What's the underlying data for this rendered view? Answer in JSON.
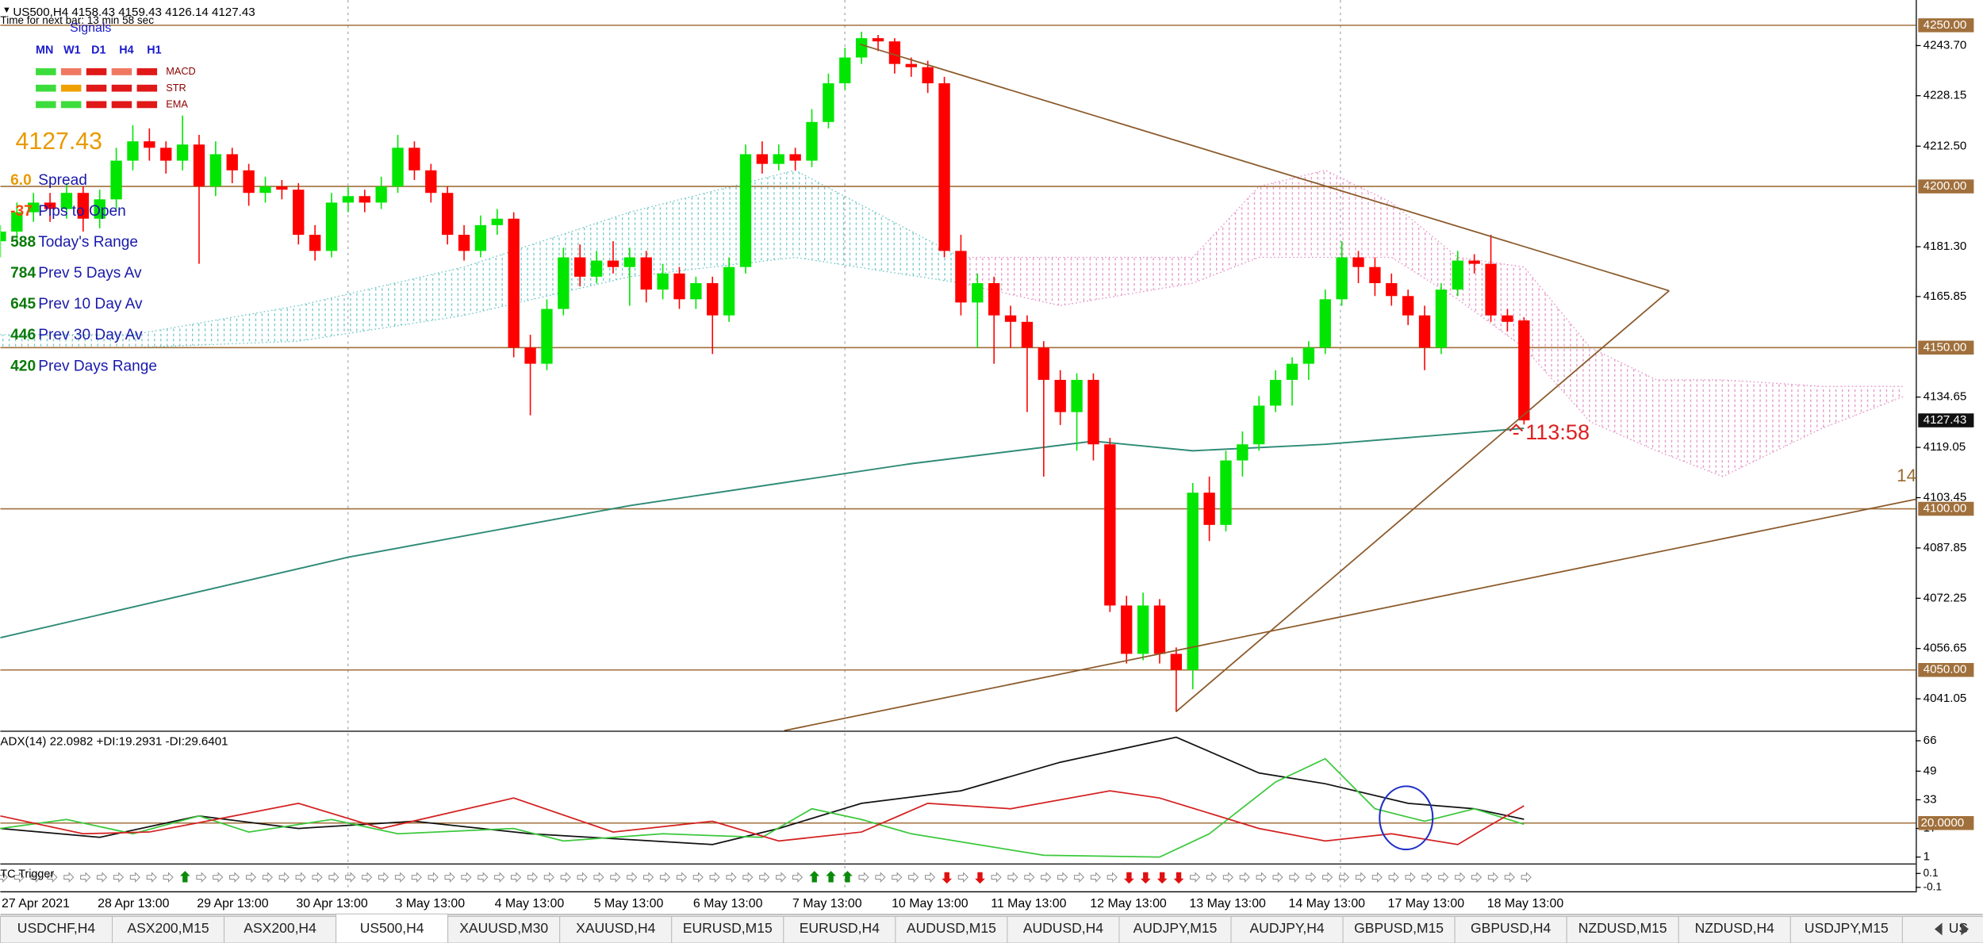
{
  "header": {
    "symbol_line": "US500,H4 4158.43 4159.43 4126.14 4127.43",
    "timer": "Time for next bar: 13 min 58 sec"
  },
  "signals": {
    "title": "Signals",
    "timeframes": [
      "MN",
      "W1",
      "D1",
      "H4",
      "H1"
    ],
    "rows": [
      {
        "name": "MACD",
        "colors": [
          "#3cdc3c",
          "#f07860",
          "#e01818",
          "#f07860",
          "#e01818"
        ]
      },
      {
        "name": "STR",
        "colors": [
          "#3cdc3c",
          "#f0a000",
          "#e01818",
          "#e01818",
          "#e01818"
        ]
      },
      {
        "name": "EMA",
        "colors": [
          "#3cdc3c",
          "#3cdc3c",
          "#e01818",
          "#e01818",
          "#e01818"
        ]
      }
    ]
  },
  "info": {
    "price": "4127.43",
    "rows": [
      {
        "value": "6.0",
        "label": "Spread",
        "color": "#e89a00"
      },
      {
        "value": "-37",
        "label": "Pips to Open",
        "color": "#ff4500"
      },
      {
        "value": "588",
        "label": "Today's Range",
        "color": "#0a7a0a"
      },
      {
        "value": "784",
        "label": "Prev 5 Days Av",
        "color": "#0a7a0a"
      },
      {
        "value": "645",
        "label": "Prev 10 Day Av",
        "color": "#0a7a0a"
      },
      {
        "value": "446",
        "label": "Prev 30 Day Av",
        "color": "#0a7a0a"
      },
      {
        "value": "420",
        "label": "Prev Days Range",
        "color": "#0a7a0a"
      }
    ]
  },
  "chart": {
    "type": "candlestick",
    "ylim": [
      4031.18,
      4257.84
    ],
    "yticks": [
      {
        "value": 4243.7,
        "label": "4243.70"
      },
      {
        "value": 4228.15,
        "label": "4228.15"
      },
      {
        "value": 4212.5,
        "label": "4212.50"
      },
      {
        "value": 4181.3,
        "label": "4181.30"
      },
      {
        "value": 4165.85,
        "label": "4165.85"
      },
      {
        "value": 4134.65,
        "label": "4134.65"
      },
      {
        "value": 4119.05,
        "label": "4119.05"
      },
      {
        "value": 4103.45,
        "label": "4103.45"
      },
      {
        "value": 4087.85,
        "label": "4087.85"
      },
      {
        "value": 4072.25,
        "label": "4072.25"
      },
      {
        "value": 4056.65,
        "label": "4056.65"
      },
      {
        "value": 4041.05,
        "label": "4041.05"
      }
    ],
    "levels": [
      {
        "value": 4250,
        "label": "4250.00"
      },
      {
        "value": 4200,
        "label": "4200.00"
      },
      {
        "value": 4150,
        "label": "4150.00"
      },
      {
        "value": 4100,
        "label": "4100.00"
      },
      {
        "value": 4050,
        "label": "4050.00"
      }
    ],
    "current": {
      "value": 4127.43,
      "label": "4127.43"
    },
    "up_color": "#00e600",
    "down_color": "#ff0000",
    "candles": [
      [
        4183,
        4188,
        4178,
        4186
      ],
      [
        4186,
        4195,
        4183,
        4192
      ],
      [
        4192,
        4198,
        4189,
        4195
      ],
      [
        4195,
        4198,
        4189,
        4193
      ],
      [
        4193,
        4201,
        4190,
        4198
      ],
      [
        4198,
        4200,
        4186,
        4190
      ],
      [
        4190,
        4199,
        4187,
        4196
      ],
      [
        4196,
        4212,
        4193,
        4208
      ],
      [
        4208,
        4219,
        4205,
        4214
      ],
      [
        4214,
        4218,
        4208,
        4212
      ],
      [
        4212,
        4214,
        4204,
        4208
      ],
      [
        4208,
        4222,
        4205,
        4213
      ],
      [
        4213,
        4216,
        4176,
        4200
      ],
      [
        4200,
        4214,
        4197,
        4210
      ],
      [
        4210,
        4212,
        4201,
        4205
      ],
      [
        4205,
        4207,
        4194,
        4198
      ],
      [
        4198,
        4203,
        4195,
        4200
      ],
      [
        4200,
        4202,
        4196,
        4199
      ],
      [
        4199,
        4201,
        4182,
        4185
      ],
      [
        4185,
        4188,
        4177,
        4180
      ],
      [
        4180,
        4198,
        4178,
        4195
      ],
      [
        4195,
        4200,
        4192,
        4197
      ],
      [
        4197,
        4199,
        4192,
        4195
      ],
      [
        4195,
        4203,
        4193,
        4200
      ],
      [
        4200,
        4216,
        4198,
        4212
      ],
      [
        4212,
        4214,
        4202,
        4205
      ],
      [
        4205,
        4207,
        4195,
        4198
      ],
      [
        4198,
        4200,
        4182,
        4185
      ],
      [
        4185,
        4188,
        4177,
        4180
      ],
      [
        4180,
        4191,
        4178,
        4188
      ],
      [
        4188,
        4193,
        4185,
        4190
      ],
      [
        4190,
        4192,
        4147,
        4150
      ],
      [
        4150,
        4154,
        4129,
        4145
      ],
      [
        4145,
        4165,
        4143,
        4162
      ],
      [
        4162,
        4181,
        4160,
        4178
      ],
      [
        4178,
        4182,
        4169,
        4172
      ],
      [
        4172,
        4180,
        4170,
        4177
      ],
      [
        4177,
        4183,
        4173,
        4175
      ],
      [
        4175,
        4181,
        4163,
        4178
      ],
      [
        4178,
        4180,
        4164,
        4168
      ],
      [
        4168,
        4176,
        4165,
        4173
      ],
      [
        4173,
        4175,
        4162,
        4165
      ],
      [
        4165,
        4172,
        4162,
        4170
      ],
      [
        4170,
        4172,
        4148,
        4160
      ],
      [
        4160,
        4178,
        4158,
        4175
      ],
      [
        4175,
        4213,
        4173,
        4210
      ],
      [
        4210,
        4214,
        4204,
        4207
      ],
      [
        4207,
        4213,
        4205,
        4210
      ],
      [
        4210,
        4212,
        4205,
        4208
      ],
      [
        4208,
        4224,
        4206,
        4220
      ],
      [
        4220,
        4235,
        4218,
        4232
      ],
      [
        4232,
        4243,
        4230,
        4240
      ],
      [
        4240,
        4248,
        4238,
        4246
      ],
      [
        4246,
        4247,
        4242,
        4245
      ],
      [
        4245,
        4246,
        4235,
        4238
      ],
      [
        4238,
        4240,
        4234,
        4237
      ],
      [
        4237,
        4239,
        4229,
        4232
      ],
      [
        4232,
        4234,
        4178,
        4180
      ],
      [
        4180,
        4185,
        4160,
        4164
      ],
      [
        4164,
        4173,
        4150,
        4170
      ],
      [
        4170,
        4172,
        4145,
        4160
      ],
      [
        4160,
        4163,
        4150,
        4158
      ],
      [
        4158,
        4160,
        4130,
        4150
      ],
      [
        4150,
        4152,
        4110,
        4140
      ],
      [
        4140,
        4143,
        4126,
        4130
      ],
      [
        4130,
        4142,
        4118,
        4140
      ],
      [
        4140,
        4142,
        4115,
        4120
      ],
      [
        4120,
        4122,
        4068,
        4070
      ],
      [
        4070,
        4073,
        4052,
        4055
      ],
      [
        4055,
        4074,
        4053,
        4070
      ],
      [
        4070,
        4072,
        4052,
        4055
      ],
      [
        4055,
        4057,
        4037,
        4050
      ],
      [
        4050,
        4108,
        4044,
        4105
      ],
      [
        4105,
        4110,
        4090,
        4095
      ],
      [
        4095,
        4118,
        4093,
        4115
      ],
      [
        4115,
        4124,
        4110,
        4120
      ],
      [
        4120,
        4135,
        4118,
        4132
      ],
      [
        4132,
        4143,
        4130,
        4140
      ],
      [
        4140,
        4147,
        4132,
        4145
      ],
      [
        4145,
        4152,
        4140,
        4150
      ],
      [
        4150,
        4168,
        4148,
        4165
      ],
      [
        4165,
        4183,
        4163,
        4178
      ],
      [
        4178,
        4180,
        4170,
        4175
      ],
      [
        4175,
        4178,
        4166,
        4170
      ],
      [
        4170,
        4173,
        4163,
        4166
      ],
      [
        4166,
        4168,
        4157,
        4160
      ],
      [
        4160,
        4163,
        4143,
        4150
      ],
      [
        4150,
        4170,
        4148,
        4168
      ],
      [
        4168,
        4180,
        4166,
        4177
      ],
      [
        4177,
        4179,
        4173,
        4176
      ],
      [
        4176,
        4185,
        4158,
        4160
      ],
      [
        4160,
        4162,
        4155,
        4158
      ],
      [
        4158.43,
        4159.43,
        4126.14,
        4127.43
      ]
    ],
    "ma": {
      "color": "#2e8b77",
      "index": [
        0,
        21,
        38,
        55,
        66,
        72,
        80,
        92
      ],
      "values": [
        4060,
        4085,
        4101,
        4114,
        4121,
        4118,
        4120,
        4125
      ]
    },
    "cloud": [
      {
        "color": "#6cc4c4",
        "index": [
          0,
          8,
          18,
          28,
          38,
          48,
          58
        ],
        "upper": [
          4154,
          4154,
          4163,
          4175,
          4192,
          4205,
          4178
        ],
        "lower": [
          4150,
          4150,
          4152,
          4160,
          4172,
          4178,
          4170
        ]
      },
      {
        "color": "#e38fc4",
        "index": [
          58,
          64,
          72,
          76,
          80,
          84,
          88,
          92,
          96,
          100,
          104,
          110,
          115
        ],
        "upper": [
          4178,
          4178,
          4178,
          4200,
          4205,
          4195,
          4178,
          4175,
          4150,
          4140,
          4140,
          4138,
          4138
        ],
        "lower": [
          4170,
          4163,
          4170,
          4178,
          4178,
          4178,
          4165,
          4150,
          4127,
          4118,
          4110,
          4125,
          4135
        ]
      }
    ],
    "countdown": "- 113:58",
    "trend_label": "14",
    "x_labels": [
      "27 Apr 2021",
      "28 Apr 13:00",
      "29 Apr 13:00",
      "30 Apr 13:00",
      "3 May 13:00",
      "4 May 13:00",
      "5 May 13:00",
      "6 May 13:00",
      "7 May 13:00",
      "10 May 13:00",
      "11 May 13:00",
      "12 May 13:00",
      "13 May 13:00",
      "14 May 13:00",
      "17 May 13:00",
      "18 May 13:00"
    ]
  },
  "adx": {
    "title": "ADX(14) 22.0982 +DI:19.2931 -DI:29.6401",
    "ylim": [
      -2.53,
      70.95
    ],
    "yticks": [
      66,
      49,
      33,
      17,
      1
    ],
    "level": {
      "value": 20,
      "label": "20.0000"
    },
    "series": [
      {
        "color": "#111111",
        "index": [
          0,
          6,
          12,
          18,
          25,
          32,
          43,
          47,
          52,
          58,
          64,
          71,
          76,
          80,
          85,
          89,
          92
        ],
        "values": [
          17,
          12,
          24,
          17,
          21,
          14,
          8,
          17,
          31,
          38,
          54,
          68,
          48,
          42,
          31,
          28,
          22.0982
        ]
      },
      {
        "color": "#3cc83c",
        "index": [
          0,
          4,
          8,
          12,
          15,
          20,
          24,
          31,
          34,
          40,
          46,
          49,
          52,
          55,
          63,
          70,
          73,
          77,
          80,
          83,
          86,
          89,
          92
        ],
        "values": [
          17,
          22,
          14,
          24,
          15,
          22,
          14,
          17,
          10,
          14,
          12,
          28,
          22,
          14,
          2,
          1,
          14,
          43,
          56,
          28,
          21,
          28,
          19.2931
        ]
      },
      {
        "color": "#d42020",
        "index": [
          0,
          5,
          9,
          13,
          18,
          23,
          31,
          37,
          43,
          47,
          52,
          56,
          61,
          67,
          70,
          76,
          80,
          84,
          88,
          90,
          92
        ],
        "values": [
          24,
          14,
          15,
          22,
          31,
          17,
          34,
          15,
          21,
          10,
          15,
          31,
          28,
          38,
          34,
          17,
          10,
          14,
          8,
          19,
          29.6401
        ]
      }
    ]
  },
  "tc_trigger": {
    "title": "TC Trigger",
    "ylim": [
      -0.173,
      0.227
    ],
    "yticks": [
      0.1,
      -0.1
    ],
    "up": [
      11,
      49,
      50,
      51
    ],
    "down": [
      57,
      59,
      68,
      69,
      70,
      71
    ]
  },
  "tabs": [
    "USDCHF,H4",
    "ASX200,M15",
    "ASX200,H4",
    "US500,H4",
    "XAUUSD,M30",
    "XAUUSD,H4",
    "EURUSD,M15",
    "EURUSD,H4",
    "AUDUSD,M15",
    "AUDUSD,H4",
    "AUDJPY,M15",
    "AUDJPY,H4",
    "GBPUSD,M15",
    "GBPUSD,H4",
    "NZDUSD,M15",
    "NZDUSD,H4",
    "USDJPY,M15",
    "US"
  ],
  "active_tab": 3
}
